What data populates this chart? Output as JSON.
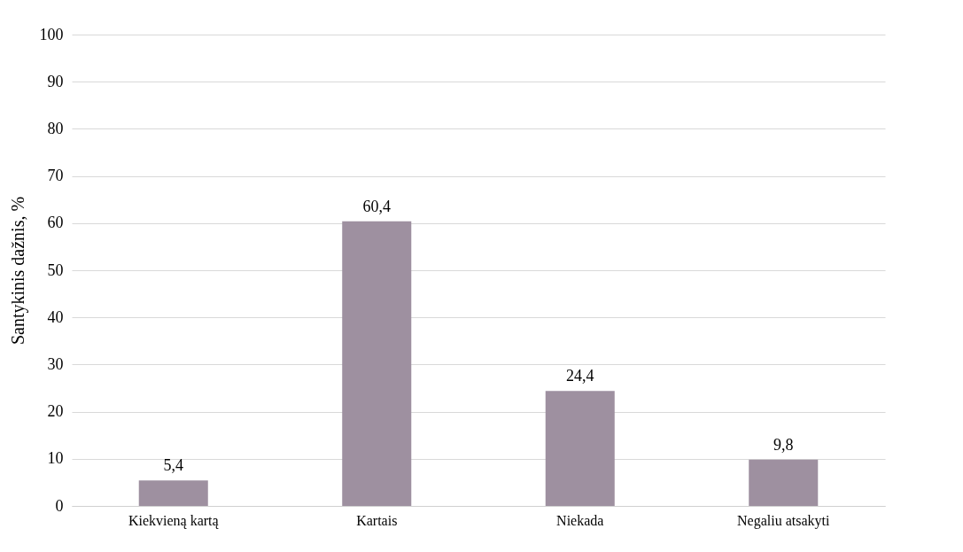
{
  "chart_data": {
    "type": "bar",
    "ylabel": "Santykinis dažnis, %",
    "categories": [
      "Kiekvieną kartą",
      "Kartais",
      "Niekada",
      "Negaliu atsakyti"
    ],
    "values": [
      5.4,
      60.4,
      24.4,
      9.8
    ],
    "value_labels": [
      "5,4",
      "60,4",
      "24,4",
      "9,8"
    ],
    "color": "#9e90a0",
    "ylim": [
      0,
      100
    ],
    "yticks": [
      0,
      10,
      20,
      30,
      40,
      50,
      60,
      70,
      80,
      90,
      100
    ],
    "grid": "y"
  }
}
